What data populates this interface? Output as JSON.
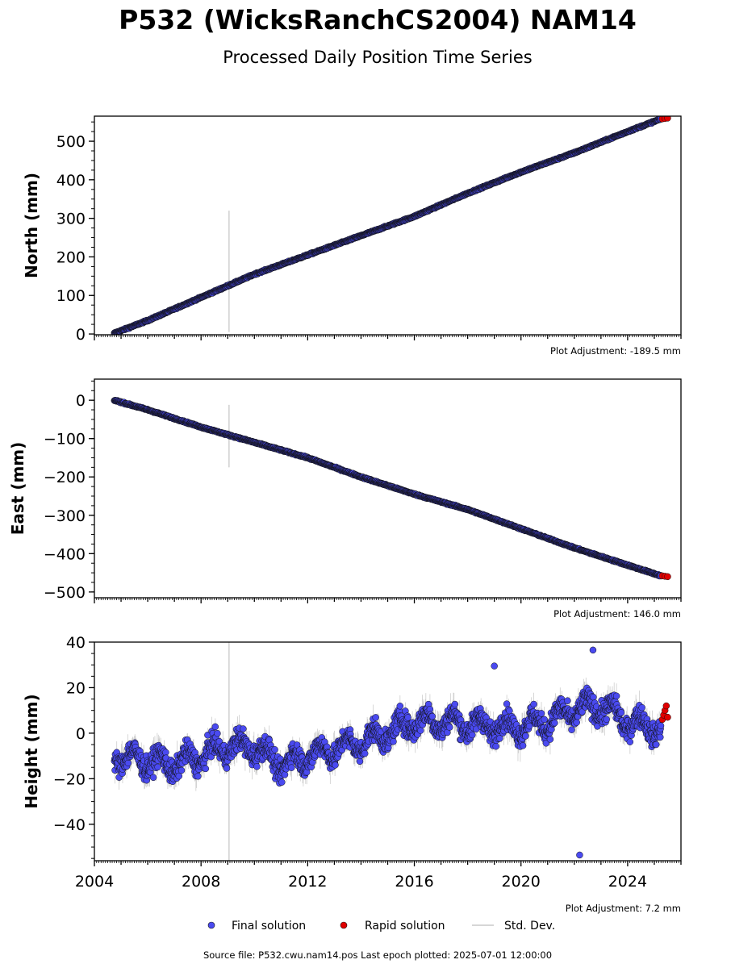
{
  "title": "P532 (WicksRanchCS2004) NAM14",
  "subtitle": "Processed Daily Position Time Series",
  "chart_data": [
    {
      "type": "scatter",
      "ylabel": "North (mm)",
      "adjustment": "Plot Adjustment: -189.5 mm",
      "xlim": [
        2004.0,
        2026.0
      ],
      "ylim": [
        -2,
        565
      ],
      "yticks": [
        0,
        100,
        200,
        300,
        400,
        500
      ],
      "ytick_labels": [
        "0",
        "100",
        "200",
        "300",
        "400",
        "500"
      ],
      "series": [
        {
          "name": "Final solution",
          "x": [
            2004.75,
            2006.0,
            2008.0,
            2010.0,
            2012.0,
            2014.0,
            2016.0,
            2018.0,
            2020.0,
            2022.0,
            2024.0,
            2025.25
          ],
          "values": [
            2,
            35,
            95,
            155,
            205,
            255,
            305,
            365,
            420,
            470,
            525,
            558
          ]
        },
        {
          "name": "Rapid solution",
          "x": [
            2025.3,
            2025.4,
            2025.5
          ],
          "values": [
            558,
            559,
            560
          ]
        }
      ],
      "outliers": [
        {
          "x": 2009.05,
          "low": 5,
          "high": 320
        }
      ]
    },
    {
      "type": "scatter",
      "ylabel": "East (mm)",
      "adjustment": "Plot Adjustment: 146.0 mm",
      "xlim": [
        2004.0,
        2026.0
      ],
      "ylim": [
        -515,
        55
      ],
      "yticks": [
        0,
        -100,
        -200,
        -300,
        -400,
        -500
      ],
      "ytick_labels": [
        "0",
        "−100",
        "−200",
        "−300",
        "−400",
        "−500"
      ],
      "series": [
        {
          "name": "Final solution",
          "x": [
            2004.75,
            2006.0,
            2008.0,
            2010.0,
            2012.0,
            2014.0,
            2016.0,
            2018.0,
            2020.0,
            2022.0,
            2024.0,
            2025.25
          ],
          "values": [
            0,
            -25,
            -70,
            -110,
            -150,
            -200,
            -245,
            -285,
            -335,
            -385,
            -430,
            -458
          ]
        },
        {
          "name": "Rapid solution",
          "x": [
            2025.3,
            2025.4,
            2025.5
          ],
          "values": [
            -458,
            -459,
            -460
          ]
        }
      ],
      "outliers": [
        {
          "x": 2009.05,
          "low": -175,
          "high": -12
        }
      ]
    },
    {
      "type": "scatter",
      "ylabel": "Height (mm)",
      "adjustment": "Plot Adjustment: 7.2 mm",
      "xlim": [
        2004.0,
        2026.0
      ],
      "ylim": [
        -56,
        40
      ],
      "yticks": [
        40,
        20,
        0,
        -20,
        -40
      ],
      "ytick_labels": [
        "40",
        "20",
        "0",
        "−20",
        "−40"
      ],
      "xticks": [
        2004,
        2008,
        2012,
        2016,
        2020,
        2024
      ],
      "xtick_labels": [
        "2004",
        "2008",
        "2012",
        "2016",
        "2020",
        "2024"
      ],
      "series": [
        {
          "name": "Final solution",
          "x": [
            2004.75,
            2006.0,
            2007.0,
            2008.0,
            2009.0,
            2010.0,
            2011.0,
            2012.0,
            2013.0,
            2014.0,
            2015.0,
            2016.0,
            2017.0,
            2018.0,
            2019.0,
            2020.0,
            2021.0,
            2022.0,
            2023.0,
            2024.0,
            2025.25
          ],
          "values": [
            -10,
            -12,
            -14,
            -10,
            -6,
            -6,
            -14,
            -10,
            -7,
            -4,
            0,
            5,
            5,
            4,
            3,
            3,
            5,
            10,
            12,
            5,
            2
          ]
        },
        {
          "name": "Rapid solution",
          "x": [
            2025.3,
            2025.35,
            2025.4,
            2025.45,
            2025.5
          ],
          "values": [
            6,
            8,
            10,
            12,
            7
          ]
        }
      ],
      "outliers": [
        {
          "x": 2009.05,
          "low": -56,
          "high": 40
        }
      ],
      "extreme_points": [
        {
          "x": 2022.2,
          "y": -53.5
        },
        {
          "x": 2019.0,
          "y": 29.5
        },
        {
          "x": 2022.7,
          "y": 36.5
        }
      ]
    }
  ],
  "legend": {
    "final": "Final solution",
    "rapid": "Rapid solution",
    "std": "Std. Dev."
  },
  "colors": {
    "final": "#4a4af0",
    "rapid": "#e00000",
    "std": "#c8c8c8",
    "edge": "#111111"
  },
  "footer": "Source file: P532.cwu.nam14.pos  Last epoch plotted: 2025-07-01 12:00:00"
}
